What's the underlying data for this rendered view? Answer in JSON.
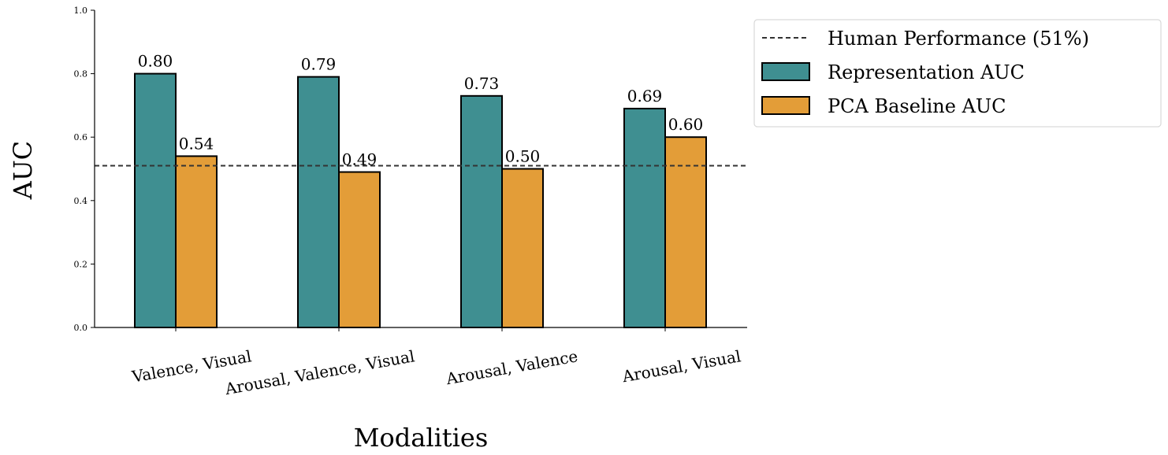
{
  "chart_data": {
    "type": "bar",
    "title": "",
    "xlabel": "Modalities",
    "ylabel": "AUC",
    "ylim": [
      0.0,
      1.0
    ],
    "yticks": [
      "0.0",
      "0.2",
      "0.4",
      "0.6",
      "0.8",
      "1.0"
    ],
    "categories": [
      "Valence, Visual",
      "Arousal, Valence, Visual",
      "Arousal, Valence",
      "Arousal, Visual"
    ],
    "series": [
      {
        "name": "Representation AUC",
        "color": "#3f8f91",
        "values": [
          0.8,
          0.79,
          0.73,
          0.69
        ],
        "labels": [
          "0.80",
          "0.79",
          "0.73",
          "0.69"
        ]
      },
      {
        "name": "PCA Baseline AUC",
        "color": "#e39d38",
        "values": [
          0.54,
          0.49,
          0.5,
          0.6
        ],
        "labels": [
          "0.54",
          "0.49",
          "0.50",
          "0.60"
        ]
      }
    ],
    "reference_line": {
      "name": "Human Performance (51%)",
      "value": 0.51,
      "style": "dashed"
    },
    "legend": {
      "position": "outside-top-right",
      "entries": [
        "Human Performance (51%)",
        "Representation AUC",
        "PCA Baseline AUC"
      ]
    },
    "grid": false
  }
}
